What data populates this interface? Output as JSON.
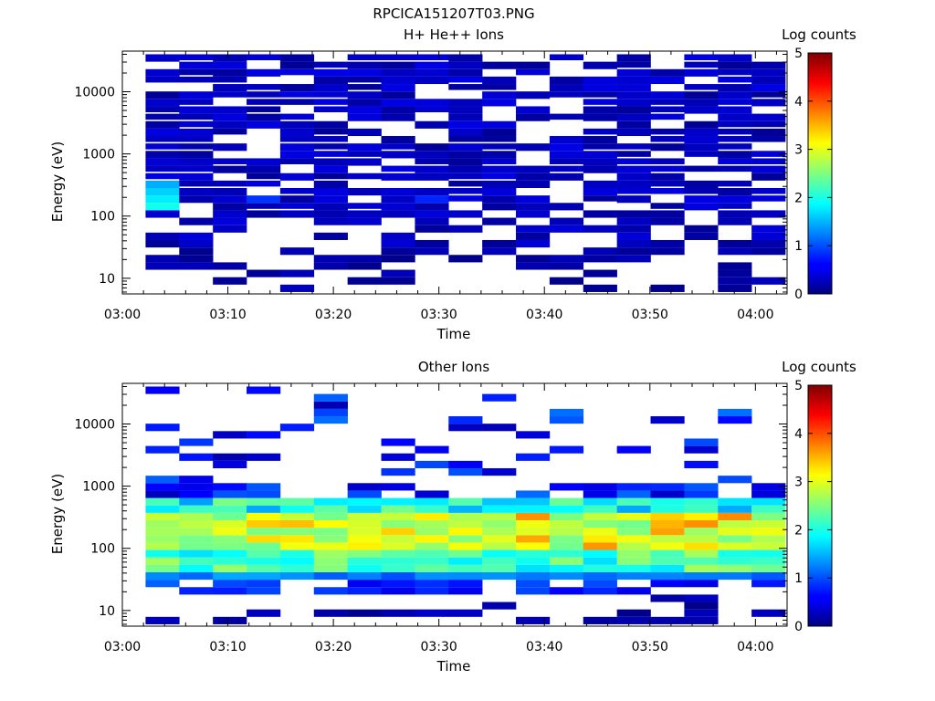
{
  "figure_title": "RPCICA151207T03.PNG",
  "chart_data": [
    {
      "type": "heatmap",
      "title": "H+ He++ Ions",
      "xlabel": "Time",
      "ylabel": "Energy (eV)",
      "y_scale": "log",
      "ylim": [
        5.6,
        45000
      ],
      "xlim": [
        "03:00",
        "04:03"
      ],
      "x_ticks": [
        "03:00",
        "03:10",
        "03:20",
        "03:30",
        "03:40",
        "03:50",
        "04:00"
      ],
      "y_ticks": [
        "10",
        "100",
        "1000",
        "10000"
      ],
      "colorbar": {
        "label": "Log counts",
        "range": [
          0,
          5
        ],
        "ticks": [
          "0",
          "1",
          "2",
          "3",
          "4",
          "5"
        ],
        "colormap": "jet"
      },
      "time_bins": [
        "03:02",
        "03:05",
        "03:09",
        "03:12",
        "03:15",
        "03:19",
        "03:22",
        "03:25",
        "03:29",
        "03:32",
        "03:35",
        "03:39",
        "03:42",
        "03:45",
        "03:49",
        "03:52",
        "03:55",
        "03:59",
        "04:02"
      ],
      "summary": "Sparse low-count (log counts ~0-0.5) coverage from ~10 eV to ~40000 eV with intermittent gaps; first bin shows elevated counts (~1.5-2) near 150-400 eV; occasional moderate bins (~1) around 150-300 eV."
    },
    {
      "type": "heatmap",
      "title": "Other Ions",
      "xlabel": "Time",
      "ylabel": "Energy (eV)",
      "y_scale": "log",
      "ylim": [
        5.6,
        45000
      ],
      "xlim": [
        "03:00",
        "04:03"
      ],
      "x_ticks": [
        "03:00",
        "03:10",
        "03:20",
        "03:30",
        "03:40",
        "03:50",
        "04:00"
      ],
      "y_ticks": [
        "10",
        "100",
        "1000",
        "10000"
      ],
      "colorbar": {
        "label": "Log counts",
        "range": [
          0,
          5
        ],
        "ticks": [
          "0",
          "1",
          "2",
          "3",
          "4",
          "5"
        ],
        "colormap": "jet"
      },
      "time_bins": [
        "03:02",
        "03:05",
        "03:09",
        "03:12",
        "03:15",
        "03:19",
        "03:22",
        "03:25",
        "03:29",
        "03:32",
        "03:35",
        "03:39",
        "03:42",
        "03:45",
        "03:49",
        "03:52",
        "03:55",
        "03:59",
        "04:02"
      ],
      "summary": "Dense population between ~20 eV and ~800 eV peaking at log counts ~3-3.5 near 100-300 eV; sparse low-count lines extend up to ~30000 eV; scattered low counts near 8-15 eV."
    }
  ]
}
